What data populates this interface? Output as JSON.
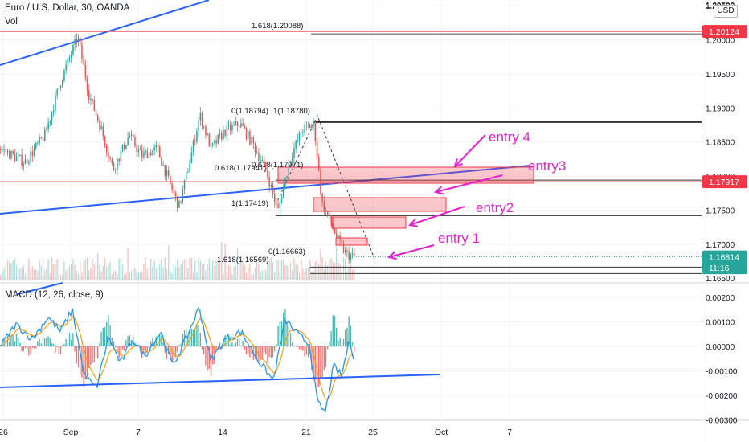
{
  "header": {
    "symbol_title": "Euro / U.S. Dollar, 30, OANDA",
    "volume_label": "Vol",
    "currency": "USD",
    "macd_title": "MACD (12, 26, close, 9)"
  },
  "colors": {
    "up": "#26a69a",
    "down": "#ef5350",
    "trendline": "#2962ff",
    "fib_red": "#f23645",
    "annotation": "#e91ed2",
    "macd": "#2196f3",
    "signal": "#ff9800"
  },
  "chart_data": [
    {
      "type": "candlestick",
      "title": "Euro / U.S. Dollar, 30, OANDA",
      "ylim": [
        1.1645,
        1.2055
      ],
      "y_ticks": [
        1.205,
        1.2,
        1.195,
        1.19,
        1.185,
        1.18,
        1.175,
        1.17,
        1.165
      ],
      "y_tick_labels": [
        "1.20500",
        "1.20000",
        "1.19500",
        "1.19000",
        "1.18500",
        "1.18000",
        "1.17500",
        "1.17000",
        "1.16500"
      ],
      "x_tick_labels": [
        "26",
        "Sep",
        "7",
        "14",
        "21",
        "25",
        "Oct",
        "7"
      ],
      "price_path": [
        [
          0,
          1.184
        ],
        [
          30,
          1.182
        ],
        [
          55,
          1.186
        ],
        [
          75,
          1.194
        ],
        [
          96,
          1.2005
        ],
        [
          110,
          1.192
        ],
        [
          125,
          1.187
        ],
        [
          140,
          1.181
        ],
        [
          160,
          1.186
        ],
        [
          175,
          1.183
        ],
        [
          195,
          1.184
        ],
        [
          210,
          1.179
        ],
        [
          222,
          1.1755
        ],
        [
          235,
          1.182
        ],
        [
          248,
          1.189
        ],
        [
          262,
          1.184
        ],
        [
          278,
          1.1865
        ],
        [
          298,
          1.1877
        ],
        [
          315,
          1.1845
        ],
        [
          330,
          1.181
        ],
        [
          345,
          1.1748
        ],
        [
          360,
          1.1825
        ],
        [
          375,
          1.1868
        ],
        [
          390,
          1.1876
        ],
        [
          400,
          1.176
        ],
        [
          410,
          1.1735
        ],
        [
          420,
          1.1705
        ],
        [
          430,
          1.1685
        ],
        [
          440,
          1.1681
        ]
      ],
      "volume_note": "Vol",
      "price_labels": [
        {
          "text": "1.20124",
          "value": 1.20124,
          "color": "#f23645"
        },
        {
          "text": "1.17917",
          "value": 1.17917,
          "color": "#f23645"
        },
        {
          "text": "1.16814",
          "value": 1.16814,
          "color": "#26a69a"
        },
        {
          "text": "11:16",
          "value": 1.16655,
          "color": "#26a69a"
        }
      ],
      "fib_levels": [
        {
          "text": "1.618(1.20088)",
          "value": 1.20088
        },
        {
          "text": "0(1.18794)",
          "value": 1.18794
        },
        {
          "text": "1(1.18780)",
          "value": 1.1878
        },
        {
          "text": "0.618(1.17941)",
          "value": 1.17941
        },
        {
          "text": "0.618(1.17971)",
          "value": 1.17971
        },
        {
          "text": "1(1.17419)",
          "value": 1.17419
        },
        {
          "text": "0(1.16663)",
          "value": 1.16663
        },
        {
          "text": "1.618(1.16569)",
          "value": 1.16569
        }
      ],
      "annotations": [
        {
          "text": "entry 4"
        },
        {
          "text": "entry3"
        },
        {
          "text": "entry2"
        },
        {
          "text": "entry 1"
        }
      ]
    },
    {
      "type": "line",
      "title": "MACD (12, 26, close, 9)",
      "ylim": [
        -0.0032,
        0.0024
      ],
      "y_ticks": [
        0.002,
        0.001,
        0.0,
        -0.001,
        -0.002,
        -0.003
      ],
      "y_tick_labels": [
        "0.00200",
        "0.00100",
        "0.00000",
        "-0.00100",
        "-0.00200",
        "-0.00300"
      ],
      "series": [
        {
          "values": [
            [
              0,
              0.0
            ],
            [
              20,
              0.0009
            ],
            [
              40,
              0.0003
            ],
            [
              60,
              0.0012
            ],
            [
              75,
              0.0006
            ],
            [
              90,
              0.0015
            ],
            [
              105,
              -0.0012
            ],
            [
              120,
              -0.0017
            ],
            [
              135,
              0.0004
            ],
            [
              150,
              -0.0007
            ],
            [
              165,
              0.0003
            ],
            [
              180,
              -0.0004
            ],
            [
              200,
              0.0006
            ],
            [
              215,
              -0.0008
            ],
            [
              230,
              0.0002
            ],
            [
              248,
              0.0016
            ],
            [
              262,
              -0.0006
            ],
            [
              280,
              0.0003
            ],
            [
              300,
              0.0006
            ],
            [
              320,
              -0.0005
            ],
            [
              340,
              -0.0014
            ],
            [
              355,
              0.0011
            ],
            [
              370,
              0.0005
            ],
            [
              385,
              0.0001
            ],
            [
              395,
              -0.0023
            ],
            [
              405,
              -0.0027
            ],
            [
              415,
              -0.0008
            ],
            [
              425,
              -0.0012
            ],
            [
              435,
              0.0003
            ],
            [
              440,
              -0.0004
            ]
          ]
        }
      ]
    }
  ]
}
